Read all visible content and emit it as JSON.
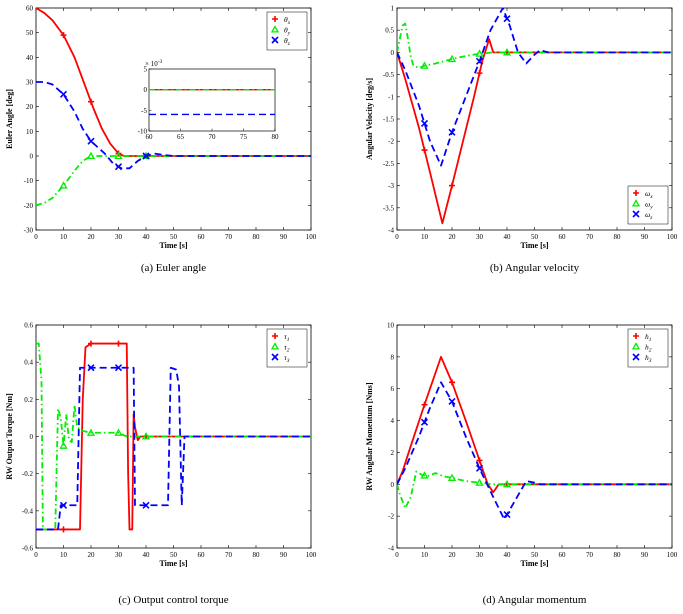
{
  "colors": {
    "series1": "#ff0000",
    "series2": "#00ee00",
    "series3": "#0000ff"
  },
  "chart_data": [
    {
      "type": "line",
      "caption": "(a) Euler angle",
      "xlabel": "Time [s]",
      "ylabel": "Euler Angle [deg]",
      "xlim": [
        0,
        100
      ],
      "ylim": [
        -30,
        60
      ],
      "xticks": [
        "0",
        "10",
        "20",
        "30",
        "40",
        "50",
        "60",
        "70",
        "80",
        "90",
        "100"
      ],
      "yticks": [
        "-30",
        "-20",
        "-10",
        "0",
        "10",
        "20",
        "30",
        "40",
        "50",
        "60"
      ],
      "legend": {
        "position": "top-right",
        "entries": [
          "θx",
          "θy",
          "θz"
        ]
      },
      "series": [
        {
          "name": "θx",
          "x": [
            0,
            3,
            6,
            10,
            14,
            18,
            21,
            24,
            27,
            30,
            32,
            35,
            40,
            50,
            60,
            70,
            80,
            90,
            100
          ],
          "y": [
            60,
            58,
            55,
            49,
            40,
            28,
            19,
            11,
            5,
            1,
            0,
            0,
            0,
            0,
            0,
            0,
            0,
            0,
            0
          ]
        },
        {
          "name": "θy",
          "x": [
            0,
            3,
            6,
            10,
            14,
            17,
            20,
            23,
            27,
            30,
            35,
            40,
            50,
            60,
            70,
            80,
            90,
            100
          ],
          "y": [
            -20,
            -19,
            -17,
            -12,
            -6,
            -2,
            0,
            0,
            0,
            0,
            0,
            0,
            0,
            0,
            0,
            0,
            0,
            0
          ]
        },
        {
          "name": "θz",
          "x": [
            0,
            3,
            6,
            10,
            14,
            17,
            20,
            22,
            25,
            28,
            31,
            34,
            37,
            40,
            43,
            46,
            50,
            60,
            70,
            80,
            90,
            100
          ],
          "y": [
            30,
            30,
            29,
            25,
            18,
            11,
            6,
            4,
            1,
            -3,
            -5,
            -5,
            -2,
            0,
            1,
            0.5,
            0,
            0,
            0,
            0,
            0,
            0
          ]
        }
      ],
      "inset": {
        "xlim": [
          60,
          80
        ],
        "ylim": [
          -10,
          5
        ],
        "xticks": [
          "60",
          "65",
          "70",
          "75",
          "80"
        ],
        "yticks": [
          "5",
          "0",
          "-5",
          "-10"
        ],
        "exponent": "× 10-3",
        "series": [
          {
            "name": "θx",
            "x": [
              60,
              80
            ],
            "y": [
              0,
              0
            ]
          },
          {
            "name": "θy",
            "x": [
              60,
              80
            ],
            "y": [
              0,
              0
            ]
          },
          {
            "name": "θz",
            "x": [
              60,
              80
            ],
            "y": [
              -6,
              -6
            ]
          }
        ]
      }
    },
    {
      "type": "line",
      "caption": "(b) Angular velocity",
      "xlabel": "Time [s]",
      "ylabel": "Angular Velocity [deg/s]",
      "xlim": [
        0,
        100
      ],
      "ylim": [
        -4,
        1
      ],
      "xticks": [
        "0",
        "10",
        "20",
        "30",
        "40",
        "50",
        "60",
        "70",
        "80",
        "90",
        "100"
      ],
      "yticks": [
        "-4",
        "-3.5",
        "-3",
        "-2.5",
        "-2",
        "-1.5",
        "-1",
        "-0.5",
        "0",
        "0.5",
        "1"
      ],
      "legend": {
        "position": "bottom-right",
        "entries": [
          "ωx",
          "ωy",
          "ωz"
        ]
      },
      "series": [
        {
          "name": "ωx",
          "x": [
            0,
            3,
            8,
            12,
            16.5,
            20,
            24,
            28,
            31,
            33.5,
            35,
            37,
            40,
            50,
            60,
            70,
            80,
            90,
            100
          ],
          "y": [
            0,
            -0.6,
            -1.7,
            -2.7,
            -3.85,
            -3.0,
            -2.0,
            -1.0,
            -0.2,
            0.3,
            0.0,
            0.0,
            0.0,
            0,
            0,
            0,
            0,
            0,
            0
          ]
        },
        {
          "name": "ωy",
          "x": [
            0,
            1,
            2,
            3,
            4,
            5,
            6,
            8,
            10,
            14,
            20,
            25,
            30,
            35,
            40,
            45,
            50,
            60,
            70,
            80,
            90,
            100
          ],
          "y": [
            0,
            0.3,
            0.6,
            0.65,
            0.3,
            -0.1,
            -0.3,
            -0.35,
            -0.3,
            -0.25,
            -0.15,
            -0.08,
            -0.03,
            0,
            0,
            0,
            0,
            0,
            0,
            0,
            0,
            0
          ]
        },
        {
          "name": "ωz",
          "x": [
            0,
            3,
            8,
            12,
            16,
            20,
            25,
            30,
            34,
            38.5,
            41,
            44,
            47,
            50,
            52,
            55,
            60,
            70,
            80,
            90,
            100
          ],
          "y": [
            0,
            -0.4,
            -1.2,
            -2.0,
            -2.55,
            -1.8,
            -1.0,
            -0.2,
            0.5,
            1.0,
            0.6,
            0.0,
            -0.25,
            -0.05,
            0.05,
            0,
            0,
            0,
            0,
            0,
            0
          ]
        }
      ]
    },
    {
      "type": "line",
      "caption": "(c) Output control torque",
      "xlabel": "Time [s]",
      "ylabel": "RW Output Torque [Nm]",
      "xlim": [
        0,
        100
      ],
      "ylim": [
        -0.6,
        0.6
      ],
      "xticks": [
        "0",
        "10",
        "20",
        "30",
        "40",
        "50",
        "60",
        "70",
        "80",
        "90",
        "100"
      ],
      "yticks": [
        "-0.6",
        "-0.4",
        "-0.2",
        "0",
        "0.2",
        "0.4",
        "0.6"
      ],
      "legend": {
        "position": "top-right",
        "entries": [
          "τ1",
          "τ2",
          "τ3"
        ]
      },
      "series": [
        {
          "name": "τ1",
          "x": [
            0,
            10,
            16,
            17,
            18,
            20,
            25,
            30,
            33,
            33.5,
            34,
            35,
            35.5,
            36,
            37,
            38,
            40,
            50,
            60,
            70,
            80,
            90,
            100
          ],
          "y": [
            -0.5,
            -0.5,
            -0.5,
            0.2,
            0.48,
            0.5,
            0.5,
            0.5,
            0.5,
            -0.2,
            -0.5,
            -0.5,
            0.12,
            0.05,
            -0.02,
            0.0,
            0,
            0,
            0,
            0,
            0,
            0,
            0
          ]
        },
        {
          "name": "τ2",
          "x": [
            0,
            1,
            2,
            2.5,
            3,
            5,
            7,
            8,
            9,
            10,
            11,
            12,
            13,
            14,
            15,
            17,
            20,
            25,
            30,
            33,
            35,
            40,
            50,
            60,
            70,
            80,
            90,
            100
          ],
          "y": [
            0.5,
            0.5,
            0.3,
            -0.5,
            -0.5,
            -0.5,
            -0.5,
            0.15,
            0.1,
            -0.05,
            0.12,
            -0.02,
            -0.03,
            0.17,
            0.05,
            0.03,
            0.02,
            0.02,
            0.02,
            0.0,
            0.0,
            0,
            0,
            0,
            0,
            0,
            0,
            0
          ]
        },
        {
          "name": "τ3",
          "x": [
            0,
            8,
            9,
            15,
            16,
            17,
            25,
            30,
            35,
            35.5,
            36,
            38,
            39,
            45,
            48,
            49,
            51,
            52,
            53,
            54,
            60,
            70,
            80,
            90,
            100
          ],
          "y": [
            -0.5,
            -0.5,
            -0.37,
            -0.37,
            0.37,
            0.37,
            0.37,
            0.37,
            0.37,
            0.37,
            -0.37,
            -0.37,
            -0.37,
            -0.37,
            -0.37,
            0.37,
            0.36,
            0.27,
            -0.37,
            0.0,
            0,
            0,
            0,
            0,
            0
          ]
        }
      ]
    },
    {
      "type": "line",
      "caption": "(d) Angular momentum",
      "xlabel": "Time [s]",
      "ylabel": "RW Angular Momentum [Nms]",
      "xlim": [
        0,
        100
      ],
      "ylim": [
        -4,
        10
      ],
      "xticks": [
        "0",
        "10",
        "20",
        "30",
        "40",
        "50",
        "60",
        "70",
        "80",
        "90",
        "100"
      ],
      "yticks": [
        "-4",
        "-2",
        "0",
        "2",
        "4",
        "6",
        "8",
        "10"
      ],
      "legend": {
        "position": "top-right",
        "entries": [
          "h1",
          "h2",
          "h3"
        ]
      },
      "series": [
        {
          "name": "h1",
          "x": [
            0,
            2,
            5,
            10,
            16,
            20,
            25,
            30,
            33,
            35,
            37,
            40,
            50,
            60,
            70,
            80,
            90,
            100
          ],
          "y": [
            0,
            0.8,
            2.4,
            5.0,
            8.0,
            6.4,
            4.0,
            1.5,
            0.0,
            -0.5,
            0.0,
            0.0,
            0,
            0,
            0,
            0,
            0,
            0
          ]
        },
        {
          "name": "h2",
          "x": [
            0,
            1,
            3,
            5,
            7,
            9,
            11,
            14,
            17,
            20,
            25,
            30,
            35,
            40,
            50,
            60,
            70,
            80,
            90,
            100
          ],
          "y": [
            0,
            -0.6,
            -1.5,
            -0.8,
            0.8,
            0.6,
            0.5,
            0.7,
            0.5,
            0.4,
            0.2,
            0.1,
            0.0,
            0,
            0,
            0,
            0,
            0,
            0,
            0
          ]
        },
        {
          "name": "h3",
          "x": [
            0,
            3,
            8,
            12,
            16,
            20,
            25,
            30,
            35,
            39,
            43,
            47,
            50,
            52,
            55,
            60,
            70,
            80,
            90,
            100
          ],
          "y": [
            0,
            1.0,
            3.0,
            4.8,
            6.4,
            5.2,
            3.0,
            1.0,
            -0.8,
            -2.2,
            -1.0,
            0.2,
            0.1,
            0,
            0,
            0,
            0,
            0,
            0,
            0
          ]
        }
      ]
    }
  ]
}
